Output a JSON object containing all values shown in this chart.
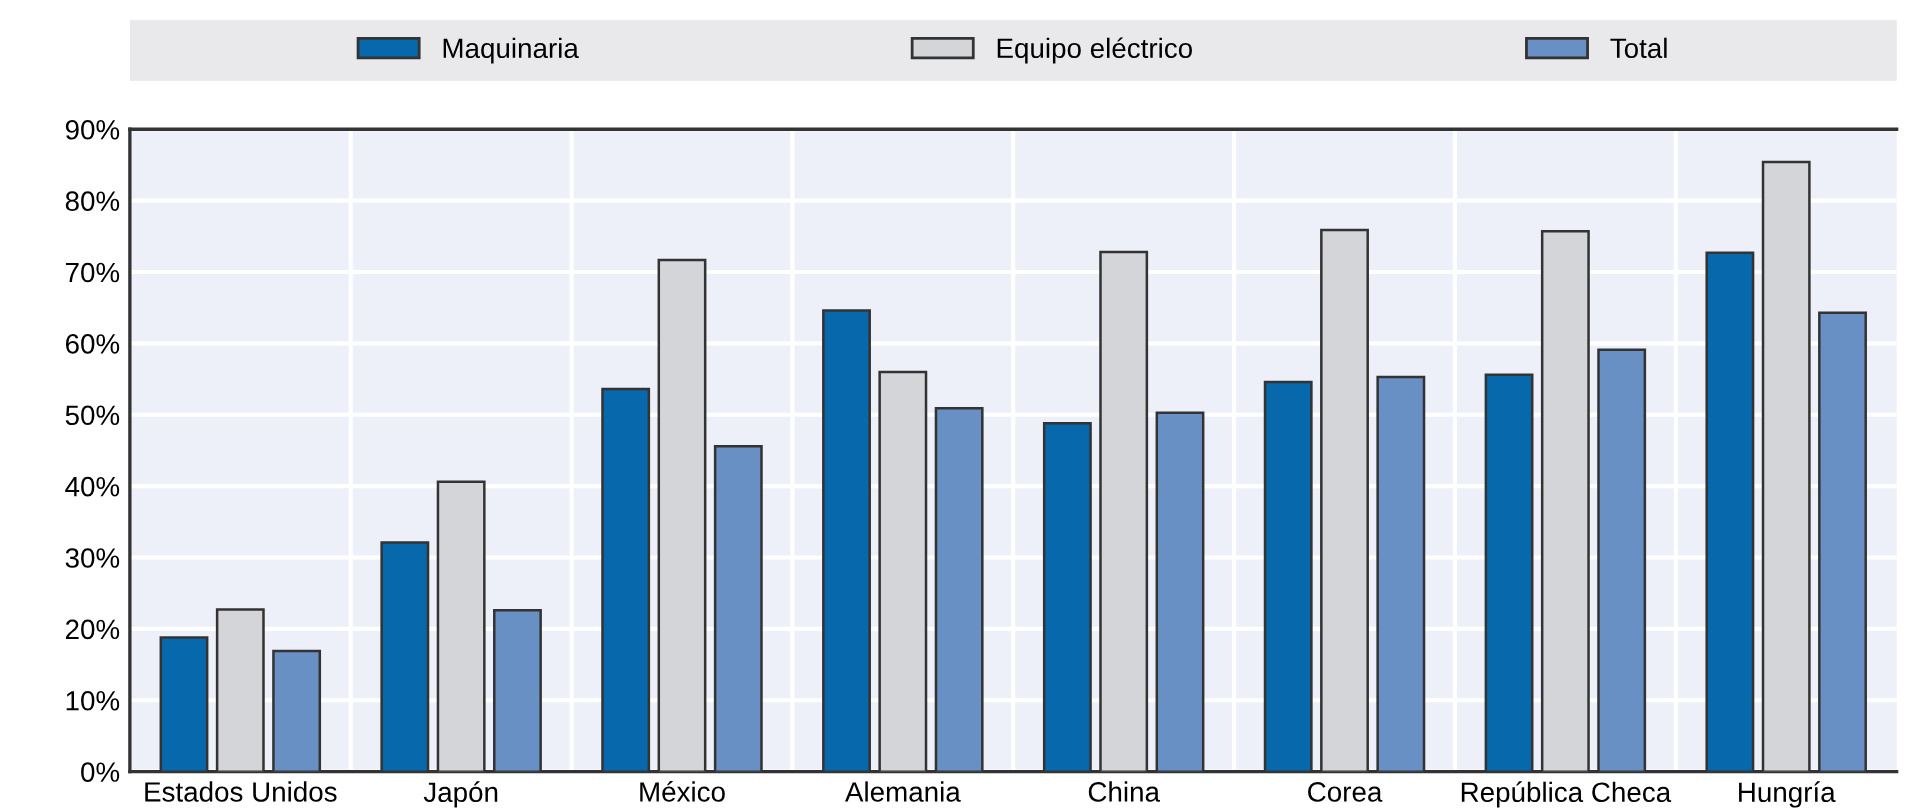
{
  "chart_data": {
    "type": "bar",
    "categories": [
      "Estados Unidos",
      "Japón",
      "México",
      "Alemania",
      "China",
      "Corea",
      "República Checa",
      "Hungría"
    ],
    "series": [
      {
        "name": "Maquinaria",
        "color": "#0868ac",
        "values": [
          18.8,
          32.1,
          53.6,
          64.6,
          48.8,
          54.6,
          55.6,
          72.7
        ]
      },
      {
        "name": "Equipo eléctrico",
        "color": "#d4d5d8",
        "values": [
          22.7,
          40.6,
          71.7,
          56.0,
          72.8,
          75.9,
          75.7,
          85.4
        ]
      },
      {
        "name": "Total",
        "color": "#6890c4",
        "values": [
          16.9,
          22.6,
          45.6,
          50.9,
          50.3,
          55.3,
          59.1,
          64.3
        ]
      }
    ],
    "ylim": [
      0,
      90
    ],
    "yticks": [
      {
        "value": 0,
        "label": "0%"
      },
      {
        "value": 10,
        "label": "10%"
      },
      {
        "value": 20,
        "label": "20%"
      },
      {
        "value": 30,
        "label": "30%"
      },
      {
        "value": 40,
        "label": "40%"
      },
      {
        "value": 50,
        "label": "50%"
      },
      {
        "value": 60,
        "label": "60%"
      },
      {
        "value": 70,
        "label": "70%"
      },
      {
        "value": 80,
        "label": "80%"
      },
      {
        "value": 90,
        "label": "90%"
      }
    ],
    "grid": true,
    "legend": "top"
  }
}
